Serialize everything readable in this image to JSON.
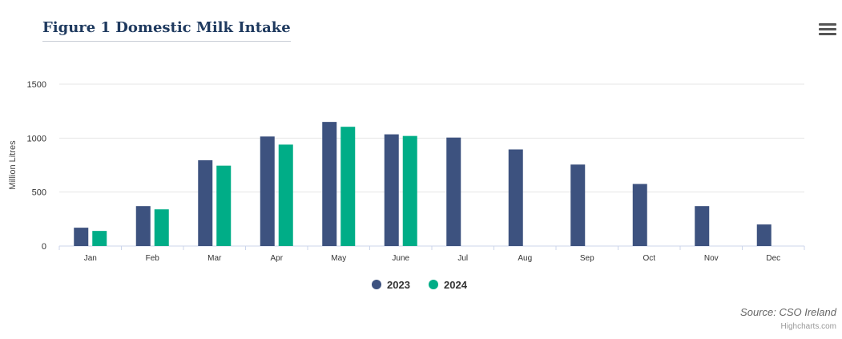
{
  "title": "Figure 1 Domestic Milk Intake",
  "source": "Source: CSO Ireland",
  "credits": "Highcharts.com",
  "menu_icon": "hamburger-menu-icon",
  "chart_data": {
    "type": "bar",
    "title": "Figure 1 Domestic Milk Intake",
    "xlabel": "",
    "ylabel": "Million Litres",
    "ylim": [
      0,
      1500
    ],
    "yticks": [
      0,
      500,
      1000,
      1500
    ],
    "grid": true,
    "legend_position": "bottom-center",
    "categories": [
      "Jan",
      "Feb",
      "Mar",
      "Apr",
      "May",
      "June",
      "Jul",
      "Aug",
      "Sep",
      "Oct",
      "Nov",
      "Dec"
    ],
    "series": [
      {
        "name": "2023",
        "color": "#3d527f",
        "values": [
          170,
          370,
          795,
          1015,
          1150,
          1035,
          1005,
          895,
          755,
          575,
          370,
          200
        ]
      },
      {
        "name": "2024",
        "color": "#00ad87",
        "values": [
          140,
          340,
          745,
          940,
          1105,
          1020,
          null,
          null,
          null,
          null,
          null,
          null
        ]
      }
    ]
  }
}
